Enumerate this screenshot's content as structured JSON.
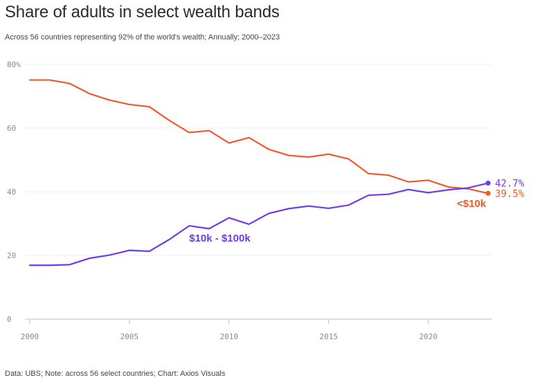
{
  "header": {
    "title": "Share of adults in select wealth bands",
    "subtitle": "Across 56 countries representing 92% of the world's wealth; Annually; 2000–2023"
  },
  "footer": {
    "source": "Data: UBS; Note: across 56 select countries; Chart: Axios Visuals"
  },
  "chart_data": {
    "type": "line",
    "title": "Share of adults in select wealth bands",
    "subtitle": "Across 56 countries representing 92% of the world's wealth; Annually; 2000–2023",
    "xlim": [
      2000,
      2023
    ],
    "ylim": [
      0,
      80
    ],
    "x_ticks": [
      "2000",
      "2005",
      "2010",
      "2015",
      "2020"
    ],
    "y_ticks": [
      "0",
      "20",
      "40",
      "60",
      "80%"
    ],
    "grid": true,
    "legend": "direct labels",
    "x": [
      2000,
      2001,
      2002,
      2003,
      2004,
      2005,
      2006,
      2007,
      2008,
      2009,
      2010,
      2011,
      2012,
      2013,
      2014,
      2015,
      2016,
      2017,
      2018,
      2019,
      2020,
      2021,
      2022,
      2023
    ],
    "series": [
      {
        "name": "<$10k",
        "color": "#ee5a2c",
        "end_label": "39.5%",
        "values": [
          75.1,
          75.1,
          74.0,
          70.8,
          68.8,
          67.4,
          66.7,
          62.4,
          58.6,
          59.2,
          55.3,
          57.0,
          53.3,
          51.4,
          50.9,
          51.8,
          50.3,
          45.7,
          45.2,
          43.1,
          43.6,
          41.5,
          40.9,
          39.5
        ]
      },
      {
        "name": "$10k - $100k",
        "color": "#6e3bea",
        "end_label": "42.7%",
        "values": [
          16.9,
          16.9,
          17.1,
          19.1,
          20.1,
          21.6,
          21.3,
          25.0,
          29.3,
          28.4,
          31.8,
          29.8,
          33.2,
          34.7,
          35.5,
          34.8,
          35.8,
          38.9,
          39.2,
          40.7,
          39.7,
          40.6,
          41.2,
          42.7
        ]
      }
    ]
  }
}
